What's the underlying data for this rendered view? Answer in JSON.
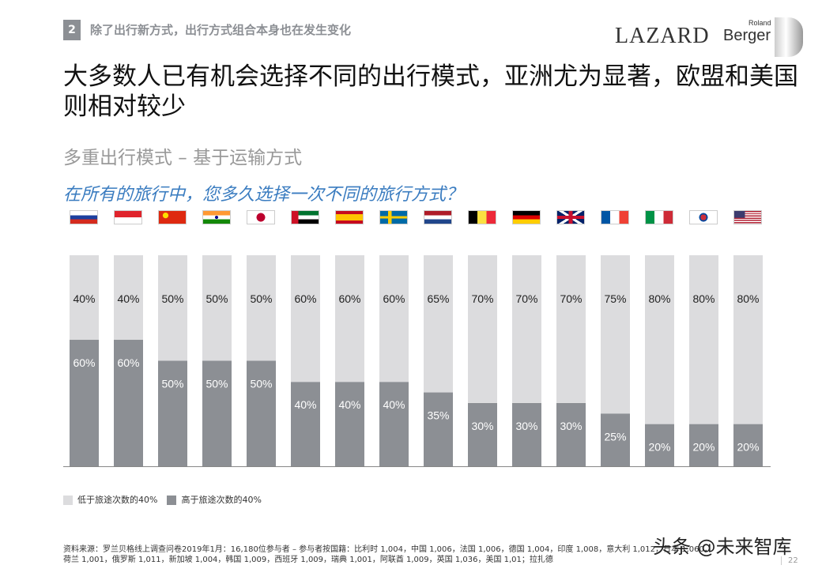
{
  "header": {
    "section_number": "2",
    "section_title": "除了出行新方式，出行方式组合本身也在发生变化",
    "logo_lazard": "LAZARD",
    "logo_rb_top": "Roland",
    "logo_rb_main": "Berger"
  },
  "title": "大多数人已有机会选择不同的出行模式，亚洲尤为显著，欧盟和美国则相对较少",
  "subtitle": "多重出行模式 – 基于运输方式",
  "question": "在所有的旅行中，您多久选择一次不同的旅行方式？",
  "chart_data": {
    "type": "bar",
    "stacked": true,
    "ylim": [
      0,
      100
    ],
    "grid": false,
    "legend_position": "bottom-left",
    "categories": [
      "russia",
      "singapore",
      "china",
      "india",
      "japan",
      "uae",
      "spain",
      "sweden",
      "netherlands",
      "belgium",
      "germany",
      "uk",
      "france",
      "italy",
      "korea",
      "usa"
    ],
    "series": [
      {
        "name": "高于旅途次数的40%",
        "color": "#8c8f94",
        "values": [
          60,
          60,
          50,
          50,
          50,
          40,
          40,
          40,
          35,
          30,
          30,
          30,
          25,
          20,
          20,
          20
        ]
      },
      {
        "name": "低于旅途次数的40%",
        "color": "#dcdcde",
        "values": [
          40,
          40,
          50,
          50,
          50,
          60,
          60,
          60,
          65,
          70,
          70,
          70,
          75,
          80,
          80,
          80
        ]
      }
    ]
  },
  "legend": {
    "light": "低于旅途次数的40%",
    "dark": "高于旅途次数的40%"
  },
  "footnote": "资料来源：罗兰贝格线上调查问卷2019年1月：16,180位参与者 – 参与者按国籍：比利时 1,004，中国 1,006，法国 1,006，德国 1,004，印度 1,008，意大利 1,012，日本 1,060，荷兰 1,001，俄罗斯 1,011，新加坡 1,004，韩国 1,009，西班牙 1,009，瑞典 1,001，阿联酋 1,009，英国 1,036，美国 1,01；拉扎德",
  "watermark": "头条 @未来智库",
  "page_number": "22"
}
